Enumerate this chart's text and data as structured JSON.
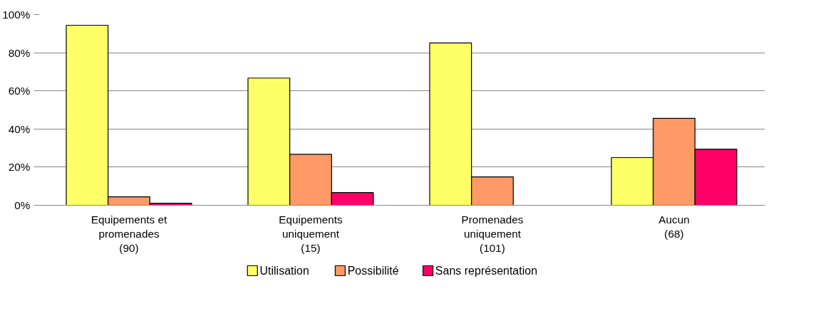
{
  "chart_data": {
    "type": "bar",
    "categories": [
      "Equipements et\npromenades\n(90)",
      "Equipements\nuniquement\n(15)",
      "Promenades\nuniquement\n(101)",
      "Aucun\n(68)"
    ],
    "series": [
      {
        "name": "Utilisation",
        "color": "#ffff66",
        "values": [
          94.4,
          66.7,
          85.1,
          25.0
        ]
      },
      {
        "name": "Possibilité",
        "color": "#ff9966",
        "values": [
          4.4,
          26.7,
          14.9,
          45.6
        ]
      },
      {
        "name": "Sans représentation",
        "color": "#ff0066",
        "values": [
          1.1,
          6.7,
          null,
          29.4
        ]
      }
    ],
    "ylim": [
      0,
      100
    ],
    "yticks": [
      {
        "value": 0,
        "label": "0%"
      },
      {
        "value": 20,
        "label": "20%"
      },
      {
        "value": 40,
        "label": "40%"
      },
      {
        "value": 60,
        "label": "60%"
      },
      {
        "value": 80,
        "label": "80%"
      },
      {
        "value": 100,
        "label": "100%"
      }
    ],
    "grid": "y",
    "legend": "bottom"
  }
}
